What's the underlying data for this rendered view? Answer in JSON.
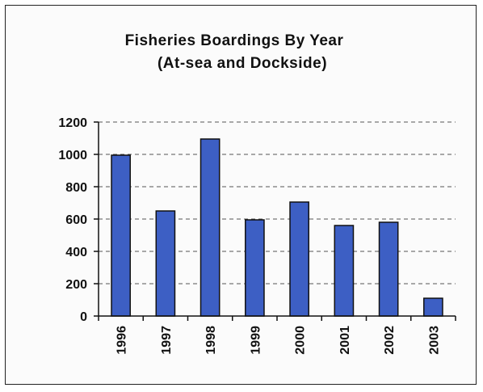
{
  "chart_data": {
    "type": "bar",
    "title": "Fisheries Boardings By Year",
    "subtitle": "(At-sea and Dockside)",
    "xlabel": "",
    "ylabel": "",
    "categories": [
      "1996",
      "1997",
      "1998",
      "1999",
      "2000",
      "2001",
      "2002",
      "2003"
    ],
    "values": [
      995,
      650,
      1095,
      595,
      705,
      560,
      580,
      110
    ],
    "ylim": [
      0,
      1200
    ],
    "yticks": [
      0,
      200,
      400,
      600,
      800,
      1000,
      1200
    ],
    "ytick_labels": [
      "0",
      "200",
      "400",
      "600",
      "800",
      "1000",
      "1200"
    ],
    "grid": "horizontal-dashed",
    "legend": "none",
    "bar_color": "#3d5fc4",
    "bar_edge_color": "#111111"
  }
}
